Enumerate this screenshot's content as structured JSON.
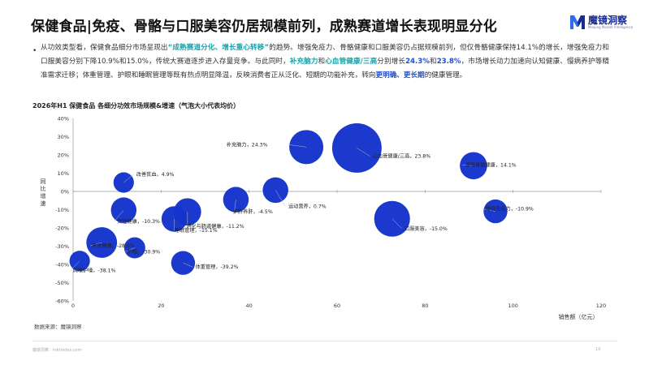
{
  "title": "保健食品|免疫、骨骼与口服美容仍居规模前列，成熟赛道增长表现明显分化",
  "logo": {
    "name": "魔镜洞察",
    "sub": "Moojing Market Intelligence",
    "accent": "#2b6cf0",
    "dark": "#1a2b8f"
  },
  "paragraph": {
    "bullet": "•",
    "p1": "从功效类型看，保健食品细分市场呈现出",
    "p2": "“成熟赛道分化、增长重心转移”",
    "p3": "的趋势。增强免疫力、骨骼健康和口服美容仍占据规模前列，但仅骨骼健康保持14.1%的增长，增强免疫力和口服美容分别下降10.9%和15.0%，传统大赛道逐步进入存量竞争。与此同时，",
    "p4": "补充脑力",
    "p5": "和",
    "p6": "心血管健康/三高",
    "p7": "分别增长",
    "p8": "24.3%",
    "p9": "和",
    "p10": "23.8%",
    "p11": "，市场增长动力加速向认知健康、慢病养护等精准需求迁移；体重管理、护眼和睡眠管理等既有热点明显降温，反映消费者正从泛化、短期的功能补充，转向",
    "p12": "更明确、更长期",
    "p13": "的健康管理。"
  },
  "chart_title": "2026年H1 保健食品 各细分功效市场规模&增速（气泡大小代表均价）",
  "source": "数据来源：魔镜洞察",
  "footer": "魔镜洞察 · mktindex.com",
  "page_number": "19",
  "chart_data": {
    "type": "scatter",
    "title": "2026年H1 保健食品 各细分功效市场规模&增速（气泡大小代表均价）",
    "xlabel": "销售额（亿元）",
    "ylabel": "同比增速",
    "xlim": [
      0,
      120
    ],
    "ylim": [
      -60,
      40
    ],
    "xticks": [
      0,
      20,
      40,
      60,
      80,
      100,
      120
    ],
    "yticks": [
      40,
      30,
      20,
      10,
      0,
      -10,
      -20,
      -30,
      -40,
      -50,
      -60
    ],
    "ytick_labels": [
      "40%",
      "30%",
      "20%",
      "10%",
      "0%",
      "-10%",
      "-20%",
      "-30%",
      "-40%",
      "-50%",
      "-60%"
    ],
    "bubble_color": "#1434cb",
    "grid": false,
    "points": [
      {
        "label": "补充脑力，24.3%",
        "x": 53,
        "y": 24.3,
        "size": 1.0
      },
      {
        "label": "心血管健康/三高，23.8%",
        "x": 64.5,
        "y": 23.8,
        "size": 1.45
      },
      {
        "label": "增强骨骼健康，14.1%",
        "x": 91,
        "y": 14.1,
        "size": 0.8
      },
      {
        "label": "改善贫血，4.9%",
        "x": 11.5,
        "y": 4.9,
        "size": 0.6
      },
      {
        "label": "女性健康，-10.3%",
        "x": 11.5,
        "y": -10.3,
        "size": 0.75
      },
      {
        "label": "运动营养，0.7%",
        "x": 46,
        "y": 0.7,
        "size": 0.75
      },
      {
        "label": "护肝养肝，-4.5%",
        "x": 37,
        "y": -4.5,
        "size": 0.75
      },
      {
        "label": "消化与肠道健康，-11.2%",
        "x": 26,
        "y": -11.2,
        "size": 0.8
      },
      {
        "label": "睡眠管理，-15.1%",
        "x": 23,
        "y": -15.1,
        "size": 0.75
      },
      {
        "label": "增强免疫力，-10.9%",
        "x": 96,
        "y": -10.9,
        "size": 0.7
      },
      {
        "label": "口服美容，-15.0%",
        "x": 72.5,
        "y": -15.0,
        "size": 1.05
      },
      {
        "label": "男性健康，-28.0%",
        "x": 6.5,
        "y": -28.0,
        "size": 0.9
      },
      {
        "label": "护眼，-30.9%",
        "x": 14,
        "y": -30.9,
        "size": 0.62
      },
      {
        "label": "体重管理，-39.2%",
        "x": 25,
        "y": -39.2,
        "size": 0.7
      },
      {
        "label": "润喉护嗓，-38.1%",
        "x": 1.5,
        "y": -38.1,
        "size": 0.6
      }
    ]
  }
}
